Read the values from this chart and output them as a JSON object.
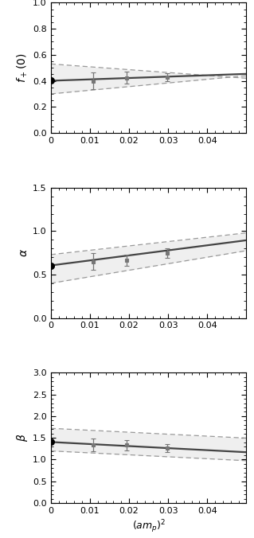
{
  "plots": [
    {
      "ylabel": "$f_+(0)$",
      "ylim": [
        0,
        1.0
      ],
      "yticks": [
        0,
        0.2,
        0.4,
        0.6,
        0.8,
        1.0
      ],
      "intercept_point": [
        0.0,
        0.401
      ],
      "intercept_err": 0.0,
      "data_points": [
        [
          0.0108,
          0.399,
          0.065
        ],
        [
          0.0194,
          0.425,
          0.045
        ],
        [
          0.0298,
          0.428,
          0.03
        ]
      ],
      "fit_a": 0.401,
      "fit_b": 1.05,
      "band_upper_a": 0.53,
      "band_upper_b": -2.2,
      "band_lower_a": 0.3,
      "band_lower_b": 2.8
    },
    {
      "ylabel": "$\\alpha$",
      "ylim": [
        0,
        1.5
      ],
      "yticks": [
        0,
        0.5,
        1.0,
        1.5
      ],
      "intercept_point": [
        0.0,
        0.605
      ],
      "intercept_err": 0.0,
      "data_points": [
        [
          0.0108,
          0.648,
          0.095
        ],
        [
          0.0194,
          0.665,
          0.065
        ],
        [
          0.0298,
          0.748,
          0.055
        ]
      ],
      "fit_a": 0.605,
      "fit_b": 5.8,
      "band_upper_a": 0.73,
      "band_upper_b": 5.0,
      "band_lower_a": 0.4,
      "band_lower_b": 7.5
    },
    {
      "ylabel": "$\\beta$",
      "ylim": [
        0,
        3.0
      ],
      "yticks": [
        0,
        0.5,
        1.0,
        1.5,
        2.0,
        2.5,
        3.0
      ],
      "intercept_point": [
        0.0,
        1.405
      ],
      "intercept_err": 0.0,
      "data_points": [
        [
          0.0108,
          1.345,
          0.145
        ],
        [
          0.0194,
          1.33,
          0.12
        ],
        [
          0.0298,
          1.265,
          0.085
        ]
      ],
      "fit_a": 1.405,
      "fit_b": -4.7,
      "band_upper_a": 1.72,
      "band_upper_b": -4.5,
      "band_lower_a": 1.2,
      "band_lower_b": -4.5
    }
  ],
  "xlim": [
    0,
    0.05
  ],
  "xticks": [
    0,
    0.01,
    0.02,
    0.03,
    0.04
  ],
  "xlabel": "$(am_p)^2$",
  "line_color": "#444444",
  "band_color": "#999999",
  "point_color": "#777777",
  "intercept_color": "#000000",
  "bg_color": "#ffffff"
}
